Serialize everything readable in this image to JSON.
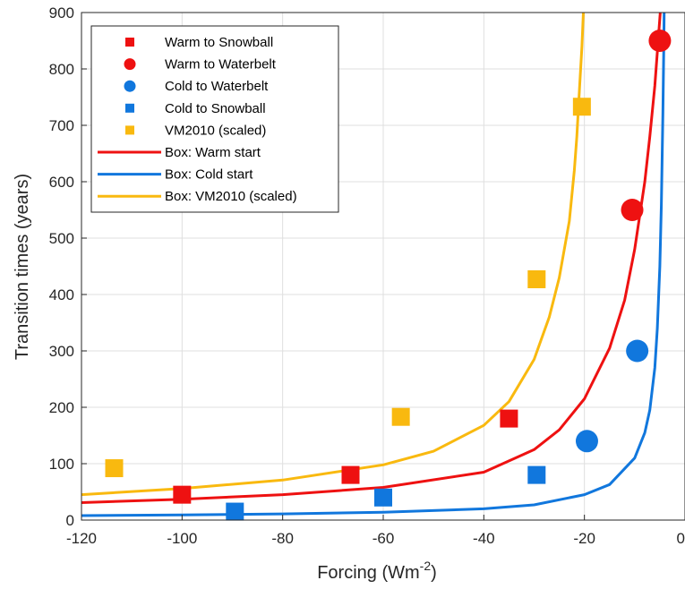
{
  "chart_data": {
    "type": "scatter",
    "xlabel": "Forcing (Wm",
    "xlabel_sup": "-2",
    "xlabel_close": ")",
    "ylabel": "Transition times (years)",
    "xlim": [
      -120,
      0
    ],
    "ylim": [
      0,
      900
    ],
    "xticks": [
      -120,
      -100,
      -80,
      -60,
      -40,
      -20,
      0
    ],
    "yticks": [
      0,
      100,
      200,
      300,
      400,
      500,
      600,
      700,
      800,
      900
    ],
    "grid": true,
    "legend_position": "top-left",
    "points": [
      {
        "name": "Warm to Snowball",
        "marker": "square",
        "color": "#ee1111",
        "x": [
          -100,
          -66.5,
          -35
        ],
        "y": [
          45,
          80,
          180
        ]
      },
      {
        "name": "Warm to Waterbelt",
        "marker": "circle",
        "color": "#ee1111",
        "x": [
          -10.5,
          -5
        ],
        "y": [
          550,
          850
        ]
      },
      {
        "name": "Cold to Waterbelt",
        "marker": "circle",
        "color": "#1177dd",
        "x": [
          -19.5,
          -9.5
        ],
        "y": [
          140,
          300
        ]
      },
      {
        "name": "Cold to Snowball",
        "marker": "square",
        "color": "#1177dd",
        "x": [
          -89.5,
          -60,
          -29.5
        ],
        "y": [
          15,
          40,
          80
        ]
      },
      {
        "name": "VM2010 (scaled)",
        "marker": "square",
        "color": "#f9b90f",
        "x": [
          -113.5,
          -56.5,
          -29.5,
          -20.5
        ],
        "y": [
          92,
          183,
          427,
          733
        ]
      }
    ],
    "curves": [
      {
        "name": "Box: Warm start",
        "color": "#ee1111",
        "x": [
          -120,
          -100,
          -80,
          -60,
          -40,
          -30,
          -25,
          -20,
          -15,
          -12,
          -10,
          -8,
          -7,
          -6,
          -5.5,
          -5,
          -4.5
        ],
        "y": [
          31,
          37,
          45,
          58,
          85,
          125,
          160,
          215,
          305,
          390,
          480,
          600,
          680,
          770,
          830,
          890,
          950
        ]
      },
      {
        "name": "Box: Cold start",
        "color": "#1177dd",
        "x": [
          -120,
          -100,
          -80,
          -60,
          -40,
          -30,
          -20,
          -15,
          -10,
          -8,
          -7,
          -6,
          -5.5,
          -5,
          -4.7,
          -4.4,
          -4.2,
          -4.1
        ],
        "y": [
          8,
          9,
          11,
          14,
          20,
          27,
          45,
          63,
          110,
          155,
          195,
          270,
          340,
          450,
          560,
          720,
          850,
          950
        ]
      },
      {
        "name": "Box: VM2010 (scaled)",
        "color": "#f9b90f",
        "x": [
          -120,
          -100,
          -80,
          -60,
          -50,
          -40,
          -35,
          -30,
          -27,
          -25,
          -23,
          -22,
          -21.5,
          -21,
          -20.5,
          -20.2,
          -20
        ],
        "y": [
          45,
          56,
          71,
          98,
          122,
          168,
          210,
          285,
          360,
          430,
          530,
          620,
          680,
          760,
          840,
          900,
          950
        ]
      }
    ]
  }
}
